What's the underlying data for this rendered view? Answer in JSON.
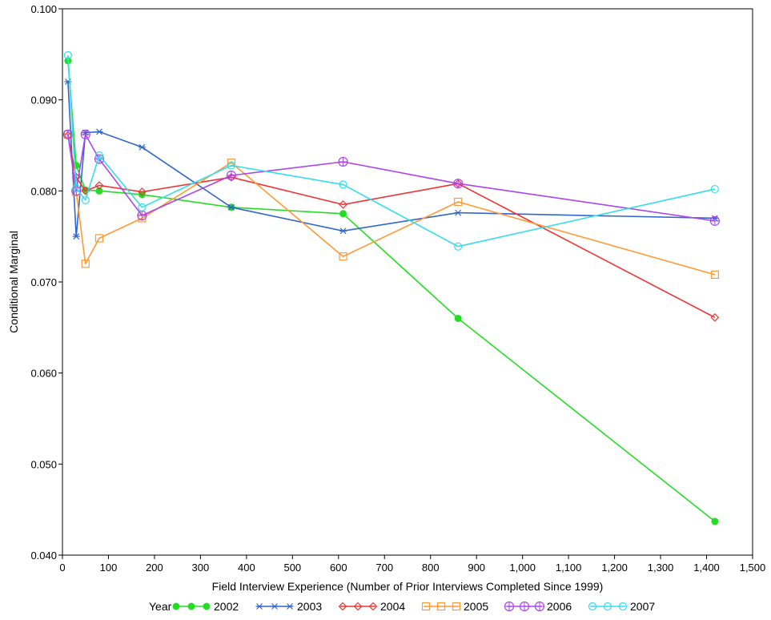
{
  "chart_data": {
    "type": "line",
    "xlabel": "Field Interview Experience (Number of Prior Interviews Completed Since 1999)",
    "ylabel": "Conditional Marginal",
    "xlim": [
      0,
      1500
    ],
    "ylim": [
      0.04,
      0.1
    ],
    "x_ticks": [
      0,
      100,
      200,
      300,
      400,
      500,
      600,
      700,
      800,
      900,
      1000,
      1100,
      1200,
      1300,
      1400,
      1500
    ],
    "x_tick_labels": [
      "0",
      "100",
      "200",
      "300",
      "400",
      "500",
      "600",
      "700",
      "800",
      "900",
      "1,000",
      "1,100",
      "1,200",
      "1,300",
      "1,400",
      "1,500"
    ],
    "y_ticks": [
      0.04,
      0.05,
      0.06,
      0.07,
      0.08,
      0.09,
      0.1
    ],
    "y_tick_labels": [
      "0.040",
      "0.050",
      "0.060",
      "0.070",
      "0.080",
      "0.090",
      "0.100"
    ],
    "grid": false,
    "legend_position": "bottom",
    "legend_title": "Year",
    "series": [
      {
        "name": "2002",
        "color": "#22dd22",
        "marker": "filled-circle",
        "x": [
          12,
          30,
          50,
          80,
          173,
          367,
          610,
          860,
          1418
        ],
        "y": [
          0.0943,
          0.0828,
          0.0801,
          0.08,
          0.0796,
          0.0782,
          0.0775,
          0.066,
          0.0437
        ]
      },
      {
        "name": "2003",
        "color": "#3366cc",
        "marker": "star",
        "x": [
          12,
          30,
          50,
          80,
          173,
          367,
          610,
          860,
          1418
        ],
        "y": [
          0.092,
          0.075,
          0.0864,
          0.0865,
          0.0848,
          0.0782,
          0.0756,
          0.0776,
          0.077
        ]
      },
      {
        "name": "2004",
        "color": "#ee3333",
        "marker": "diamond",
        "x": [
          12,
          30,
          50,
          80,
          173,
          367,
          610,
          860,
          1418
        ],
        "y": [
          0.0861,
          0.0815,
          0.08,
          0.0806,
          0.0799,
          0.0815,
          0.0785,
          0.0808,
          0.0661
        ]
      },
      {
        "name": "2005",
        "color": "#ff9933",
        "marker": "square",
        "x": [
          12,
          30,
          50,
          80,
          173,
          367,
          610,
          860,
          1418
        ],
        "y": [
          0.0862,
          0.0799,
          0.072,
          0.0748,
          0.077,
          0.0831,
          0.0728,
          0.0788,
          0.0708
        ]
      },
      {
        "name": "2006",
        "color": "#aa44ee",
        "marker": "circle-plus",
        "x": [
          12,
          30,
          50,
          80,
          173,
          367,
          610,
          860,
          1418
        ],
        "y": [
          0.0862,
          0.08,
          0.0862,
          0.0835,
          0.0773,
          0.0817,
          0.0832,
          0.0808,
          0.0767
        ]
      },
      {
        "name": "2007",
        "color": "#33ddee",
        "marker": "open-circle",
        "x": [
          12,
          30,
          50,
          80,
          173,
          367,
          610,
          860,
          1418
        ],
        "y": [
          0.0949,
          0.0803,
          0.079,
          0.0839,
          0.0782,
          0.0828,
          0.0807,
          0.0739,
          0.0802
        ]
      }
    ]
  }
}
